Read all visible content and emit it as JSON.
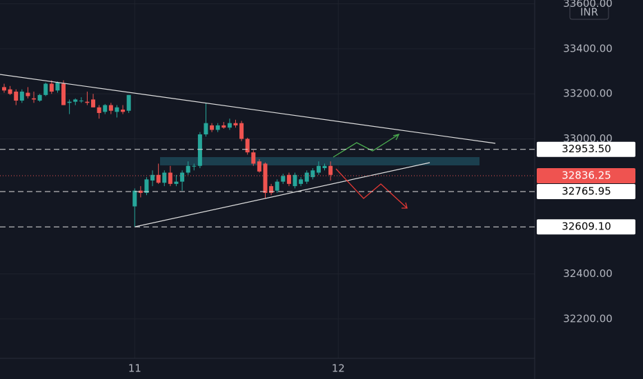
{
  "chart_data": {
    "type": "candlestick",
    "currency": "INR",
    "ylim": [
      32025,
      33617
    ],
    "yticks": [
      {
        "value": 32200,
        "label": "32200.00"
      },
      {
        "value": 32400,
        "label": "32400.00"
      },
      {
        "value": 33000,
        "label": "33000.00"
      },
      {
        "value": 33200,
        "label": "33200.00"
      },
      {
        "value": 33400,
        "label": "33400.00"
      },
      {
        "value": 33600,
        "label": "33600.00"
      }
    ],
    "xlim": [
      -0.7,
      89.4
    ],
    "xticks": [
      {
        "value": 22,
        "label": "11"
      },
      {
        "value": 56.3,
        "label": "12"
      }
    ],
    "grid": true,
    "up_color": "#26a69a",
    "down_color": "#ef5350",
    "open": [
      33230,
      33220,
      33210,
      33170,
      33205,
      33180,
      33170,
      33195,
      33245,
      33215,
      33245,
      33160,
      33165,
      33170,
      33165,
      33175,
      33140,
      33120,
      33150,
      33120,
      33130,
      33125,
      32700,
      32770,
      32760,
      32815,
      32840,
      32805,
      32850,
      32800,
      32810,
      32850,
      32880,
      32880,
      33020,
      33060,
      33040,
      33060,
      33050,
      33070,
      33070,
      33000,
      32940,
      32900,
      32890,
      32790,
      32770,
      32810,
      32840,
      32790,
      32800,
      32810,
      32830,
      32850,
      32870,
      32880
    ],
    "high": [
      33245,
      33235,
      33220,
      33220,
      33230,
      33210,
      33200,
      33250,
      33260,
      33255,
      33260,
      33175,
      33180,
      33185,
      33210,
      33200,
      33150,
      33155,
      33160,
      33150,
      33150,
      33195,
      32780,
      32790,
      32830,
      32860,
      32890,
      32860,
      32880,
      32840,
      32860,
      32900,
      32890,
      33030,
      33160,
      33070,
      33070,
      33075,
      33090,
      33085,
      33080,
      33005,
      32950,
      32910,
      32895,
      32800,
      32820,
      32845,
      32850,
      32850,
      32830,
      32860,
      32870,
      32900,
      32890,
      32900
    ],
    "low": [
      33205,
      33195,
      33150,
      33160,
      33180,
      33160,
      33165,
      33190,
      33200,
      33205,
      33150,
      33110,
      33150,
      33160,
      33150,
      33140,
      33090,
      33110,
      33110,
      33095,
      33110,
      33115,
      32610,
      32740,
      32750,
      32790,
      32800,
      32790,
      32790,
      32790,
      32770,
      32840,
      32860,
      32870,
      33010,
      33030,
      33030,
      33045,
      33040,
      33050,
      32990,
      32930,
      32880,
      32850,
      32735,
      32750,
      32760,
      32800,
      32790,
      32780,
      32790,
      32800,
      32820,
      32840,
      32860,
      32815
    ],
    "close": [
      33215,
      33200,
      33170,
      33210,
      33190,
      33175,
      33195,
      33245,
      33210,
      33250,
      33150,
      33165,
      33175,
      33170,
      33160,
      33140,
      33115,
      33150,
      33125,
      33140,
      33120,
      33195,
      32770,
      32760,
      32820,
      32840,
      32805,
      32850,
      32800,
      32810,
      32850,
      32880,
      32880,
      33020,
      33070,
      33040,
      33060,
      33050,
      33070,
      33060,
      33000,
      32940,
      32890,
      32855,
      32760,
      32760,
      32810,
      32835,
      32800,
      32840,
      32820,
      32850,
      32860,
      32880,
      32880,
      32840
    ],
    "levels": [
      {
        "value": 32953.5,
        "label": "32953.50"
      },
      {
        "value": 32765.95,
        "label": "32765.95"
      },
      {
        "value": 32609.1,
        "label": "32609.10"
      }
    ],
    "last_price": {
      "value": 32836.25,
      "label": "32836.25"
    }
  }
}
